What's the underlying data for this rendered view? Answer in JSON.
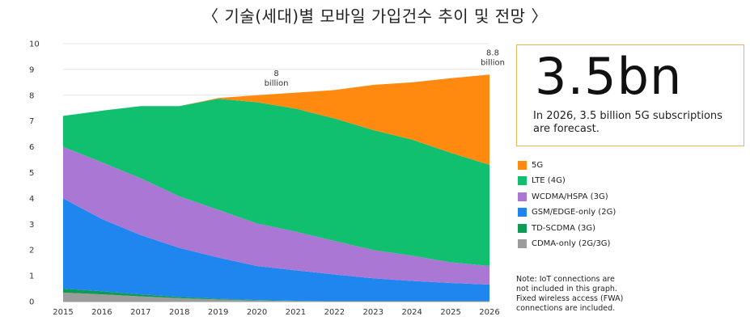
{
  "title": "〈 기술(세대)별 모바일 가입건수 추이 및 전망 〉",
  "chart_data": {
    "type": "area",
    "stacked": true,
    "x": [
      "2015",
      "2016",
      "2017",
      "2018",
      "2019",
      "2020",
      "2021",
      "2022",
      "2023",
      "2024",
      "2025",
      "2026"
    ],
    "ylim": [
      0,
      10
    ],
    "yticks": [
      0,
      1,
      2,
      3,
      4,
      5,
      6,
      7,
      8,
      9,
      10
    ],
    "series": [
      {
        "name": "CDMA-only (2G/3G)",
        "color": "#9c9c9c",
        "values": [
          0.35,
          0.28,
          0.2,
          0.13,
          0.08,
          0.04,
          0.02,
          0.01,
          0.0,
          0.0,
          0.0,
          0.0
        ]
      },
      {
        "name": "TD-SCDMA (3G)",
        "color": "#119a55",
        "values": [
          0.15,
          0.12,
          0.08,
          0.05,
          0.03,
          0.02,
          0.01,
          0.0,
          0.0,
          0.0,
          0.0,
          0.0
        ]
      },
      {
        "name": "GSM/EDGE-only (2G)",
        "color": "#1f86f0",
        "values": [
          3.5,
          2.8,
          2.3,
          1.9,
          1.6,
          1.32,
          1.18,
          1.04,
          0.9,
          0.8,
          0.72,
          0.66
        ]
      },
      {
        "name": "WCDMA/HSPA (3G)",
        "color": "#aa78d4",
        "values": [
          2.0,
          2.2,
          2.2,
          2.0,
          1.85,
          1.65,
          1.5,
          1.3,
          1.1,
          0.98,
          0.8,
          0.72
        ]
      },
      {
        "name": "LTE (4G)",
        "color": "#10c06e",
        "values": [
          1.2,
          2.0,
          2.8,
          3.5,
          4.3,
          4.7,
          4.77,
          4.75,
          4.65,
          4.5,
          4.25,
          3.92
        ]
      },
      {
        "name": "5G",
        "color": "#ff8a0f",
        "values": [
          0,
          0,
          0,
          0,
          0.03,
          0.27,
          0.62,
          1.1,
          1.75,
          2.22,
          2.89,
          3.5
        ]
      }
    ],
    "legend": [
      "5G",
      "LTE (4G)",
      "WCDMA/HSPA (3G)",
      "GSM/EDGE-only (2G)",
      "TD-SCDMA (3G)",
      "CDMA-only (2G/3G)"
    ],
    "annotations": [
      {
        "value_line1": "8",
        "value_line2": "billion",
        "year": "2020",
        "y": 8.0
      },
      {
        "value_line1": "8.8",
        "value_line2": "billion",
        "year": "2026",
        "y": 8.8
      }
    ]
  },
  "kpi": {
    "value": "3.5bn",
    "text": "In 2026, 3.5 billion 5G subscriptions are forecast."
  },
  "note": "Note: IoT connections are\nnot included in this graph.\nFixed wireless access (FWA)\nconnections are included."
}
